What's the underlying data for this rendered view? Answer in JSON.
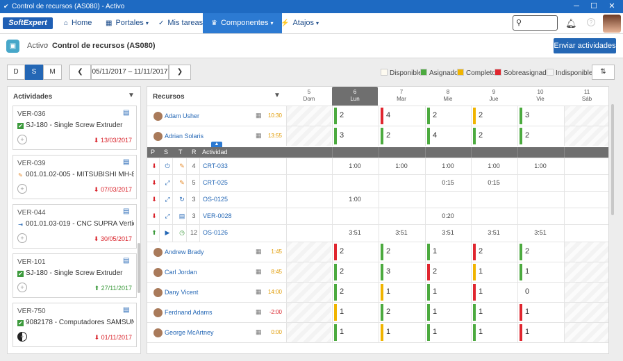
{
  "window": {
    "title": "Control de recursos (AS080) - Activo"
  },
  "nav": {
    "logo": "SoftExpert",
    "items": [
      {
        "label": "Home",
        "icon": "home-icon",
        "glyph": "⌂"
      },
      {
        "label": "Portales",
        "icon": "grid-icon",
        "glyph": "▦"
      },
      {
        "label": "Mis tareas",
        "icon": "check-icon",
        "glyph": "✓"
      },
      {
        "label": "Componentes",
        "icon": "trophy-icon",
        "glyph": "♛"
      },
      {
        "label": "Atajos",
        "icon": "bolt-icon",
        "glyph": "⚡"
      }
    ]
  },
  "breadcrumb": {
    "parent": "Activo",
    "current": "Control de recursos (AS080)"
  },
  "actions": {
    "send": "Enviar actividades"
  },
  "toolbar": {
    "views": [
      "D",
      "S",
      "M"
    ],
    "active_view": "S",
    "date_range": "05/11/2017 – 11/11/2017",
    "prev": "❮",
    "next": "❯"
  },
  "legend": [
    {
      "label": "Disponible",
      "color": "#fdfaf0"
    },
    {
      "label": "Asignado",
      "color": "#4caa3f"
    },
    {
      "label": "Completo",
      "color": "#f0b400"
    },
    {
      "label": "Sobreasignado",
      "color": "#e0262f"
    },
    {
      "label": "Indisponible",
      "color": "#f4f4f4"
    }
  ],
  "activities": {
    "title": "Actividades",
    "items": [
      {
        "code": "VER-036",
        "desc": "SJ-180 - Single Screw Extruder",
        "desc_icon": "checkbox-icon",
        "date": "13/03/2017",
        "status": "red"
      },
      {
        "code": "VER-039",
        "desc": "001.01.02-005 - MITSUBISHI MH-80D",
        "desc_icon": "wrench-icon",
        "date": "07/03/2017",
        "status": "red"
      },
      {
        "code": "VER-044",
        "desc": "001.01.03-019 - CNC SUPRA Vertic...",
        "desc_icon": "machine-icon",
        "date": "30/05/2017",
        "status": "red"
      },
      {
        "code": "VER-101",
        "desc": "SJ-180 - Single Screw Extruder",
        "desc_icon": "checkbox-icon",
        "date": "27/11/2017",
        "status": "green"
      },
      {
        "code": "VER-750",
        "desc": "9082178 - Computadores SAMSUNG",
        "desc_icon": "checkbox-icon",
        "date": "01/11/2017",
        "status": "red"
      }
    ]
  },
  "resources": {
    "title": "Recursos",
    "days": [
      {
        "num": "5",
        "name": "Dom"
      },
      {
        "num": "6",
        "name": "Lun"
      },
      {
        "num": "7",
        "name": "Mar"
      },
      {
        "num": "8",
        "name": "Mie"
      },
      {
        "num": "9",
        "name": "Jue"
      },
      {
        "num": "10",
        "name": "Vie"
      },
      {
        "num": "11",
        "name": "Sáb"
      }
    ],
    "current_day": "6",
    "top_rows": [
      {
        "name": "Adam Usher",
        "hours": "10:30",
        "hours_color": "orange",
        "cells": [
          {
            "c": "#4caa3f",
            "v": "2"
          },
          {
            "c": "#e0262f",
            "v": "4"
          },
          {
            "c": "#4caa3f",
            "v": "2"
          },
          {
            "c": "#f0b400",
            "v": "2"
          },
          {
            "c": "#4caa3f",
            "v": "3"
          }
        ]
      },
      {
        "name": "Adrian Solaris",
        "hours": "13:55",
        "hours_color": "orange",
        "cells": [
          {
            "c": "#4caa3f",
            "v": "3"
          },
          {
            "c": "#4caa3f",
            "v": "2"
          },
          {
            "c": "#4caa3f",
            "v": "4"
          },
          {
            "c": "#4caa3f",
            "v": "2"
          },
          {
            "c": "#4caa3f",
            "v": "2"
          }
        ]
      }
    ],
    "sub_header": {
      "p": "P",
      "s": "S",
      "t": "T",
      "r": "R",
      "activity": "Actividad"
    },
    "sub_rows": [
      {
        "r": "4",
        "act": "CRT-033",
        "p_icon": "down-red-icon",
        "s_icon": "power-icon",
        "t_icon": "wrench-icon",
        "times": [
          "1:00",
          "1:00",
          "1:00",
          "1:00",
          "1:00"
        ]
      },
      {
        "r": "5",
        "act": "CRT-025",
        "p_icon": "down-red-icon",
        "s_icon": "expand-icon",
        "t_icon": "wrench-icon",
        "times": [
          "",
          "",
          "0:15",
          "0:15",
          ""
        ]
      },
      {
        "r": "3",
        "act": "OS-0125",
        "p_icon": "down-red-icon",
        "s_icon": "expand-icon",
        "t_icon": "refresh-icon",
        "times": [
          "1:00",
          "",
          "",
          "",
          ""
        ]
      },
      {
        "r": "3",
        "act": "VER-0028",
        "p_icon": "down-red-icon",
        "s_icon": "expand-icon",
        "t_icon": "clipboard-icon",
        "times": [
          "",
          "",
          "0:20",
          "",
          ""
        ]
      },
      {
        "r": "12",
        "act": "OS-0126",
        "p_icon": "up-green-icon",
        "s_icon": "play-icon",
        "t_icon": "clock-icon",
        "times": [
          "3:51",
          "3:51",
          "3:51",
          "3:51",
          "3:51"
        ]
      }
    ],
    "bottom_rows": [
      {
        "name": "Andrew Brady",
        "hours": "1:45",
        "hours_color": "orange",
        "cells": [
          {
            "c": "#e0262f",
            "v": "2"
          },
          {
            "c": "#4caa3f",
            "v": "2"
          },
          {
            "c": "#4caa3f",
            "v": "1"
          },
          {
            "c": "#e0262f",
            "v": "2"
          },
          {
            "c": "#4caa3f",
            "v": "2"
          }
        ]
      },
      {
        "name": "Carl Jordan",
        "hours": "8:45",
        "hours_color": "orange",
        "cells": [
          {
            "c": "#4caa3f",
            "v": "2"
          },
          {
            "c": "#4caa3f",
            "v": "3"
          },
          {
            "c": "#e0262f",
            "v": "2"
          },
          {
            "c": "#f0b400",
            "v": "1"
          },
          {
            "c": "#4caa3f",
            "v": "1"
          }
        ]
      },
      {
        "name": "Dany Vicent",
        "hours": "14:00",
        "hours_color": "orange",
        "cells": [
          {
            "c": "#4caa3f",
            "v": "2"
          },
          {
            "c": "#f0b400",
            "v": "1"
          },
          {
            "c": "#4caa3f",
            "v": "1"
          },
          {
            "c": "#e0262f",
            "v": "1"
          },
          {
            "c": "",
            "v": "0"
          }
        ]
      },
      {
        "name": "Ferdnand Adams",
        "hours": "-2:00",
        "hours_color": "red",
        "cells": [
          {
            "c": "#f0b400",
            "v": "1"
          },
          {
            "c": "#4caa3f",
            "v": "2"
          },
          {
            "c": "#4caa3f",
            "v": "1"
          },
          {
            "c": "#4caa3f",
            "v": "1"
          },
          {
            "c": "#e0262f",
            "v": "1"
          }
        ]
      },
      {
        "name": "George McArtney",
        "hours": "0:00",
        "hours_color": "orange",
        "cells": [
          {
            "c": "#4caa3f",
            "v": "1"
          },
          {
            "c": "#f0b400",
            "v": "1"
          },
          {
            "c": "#4caa3f",
            "v": "1"
          },
          {
            "c": "#4caa3f",
            "v": "1"
          },
          {
            "c": "#e0262f",
            "v": "1"
          }
        ]
      }
    ]
  }
}
